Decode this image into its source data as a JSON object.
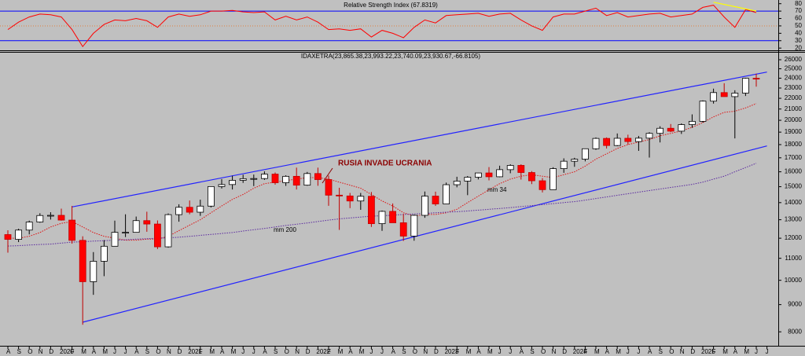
{
  "chart_data": [
    {
      "type": "line",
      "title": "Relative Strength Index (67.8319)",
      "color": "#ff0000",
      "ylim": [
        17,
        85
      ],
      "yticks": [
        80,
        70,
        60,
        50,
        40,
        30,
        20
      ],
      "bands": [
        30,
        70
      ],
      "band_color": "#0000ff",
      "midline": 50,
      "midline_color": "#e08040",
      "values": [
        45,
        55,
        62,
        66,
        65,
        62,
        45,
        22,
        40,
        52,
        58,
        57,
        60,
        57,
        48,
        62,
        66,
        63,
        65,
        70,
        70,
        71,
        69,
        68,
        69,
        58,
        63,
        58,
        62,
        55,
        45,
        46,
        44,
        46,
        35,
        44,
        40,
        34,
        48,
        58,
        54,
        64,
        65,
        66,
        67,
        63,
        66,
        67,
        58,
        50,
        44,
        62,
        66,
        66,
        70,
        74,
        64,
        68,
        62,
        64,
        66,
        67,
        62,
        64,
        66,
        75,
        78,
        62,
        48,
        72,
        68,
        null
      ],
      "trendlines": [
        {
          "color": "#ffff00",
          "x": [
            66,
            70
          ],
          "values": [
            82,
            70
          ]
        }
      ]
    },
    {
      "type": "candlestick",
      "title": "IDAXETRA(23,865.38,23,993.22,23,740.09,23,930.67,-66.8105)",
      "log_scale": true,
      "ylim": [
        7530,
        26900
      ],
      "yticks": [
        26000,
        25000,
        24000,
        23000,
        22000,
        21000,
        20000,
        19000,
        18000,
        17000,
        16000,
        15000,
        14000,
        13000,
        12000,
        11000,
        10000,
        9000,
        8000
      ],
      "categories": [
        "A",
        "S",
        "O",
        "N",
        "D",
        "2020",
        "F",
        "M",
        "A",
        "M",
        "J",
        "J",
        "A",
        "S",
        "O",
        "N",
        "D",
        "2021",
        "F",
        "M",
        "A",
        "M",
        "J",
        "J",
        "A",
        "S",
        "O",
        "N",
        "D",
        "2022",
        "F",
        "M",
        "A",
        "M",
        "J",
        "J",
        "A",
        "S",
        "O",
        "N",
        "D",
        "2023",
        "F",
        "M",
        "A",
        "M",
        "J",
        "J",
        "A",
        "S",
        "O",
        "N",
        "D",
        "2024",
        "F",
        "M",
        "A",
        "M",
        "J",
        "J",
        "A",
        "S",
        "O",
        "N",
        "D",
        "2025",
        "F",
        "M",
        "A",
        "M",
        "J",
        "J"
      ],
      "up_color": "#ffffff",
      "down_color": "#ff0000",
      "open": [
        12190,
        11940,
        12430,
        12870,
        13240,
        13250,
        12980,
        11890,
        9940,
        10860,
        11590,
        12310,
        12310,
        12950,
        12760,
        11560,
        13290,
        13720,
        13430,
        13790,
        15010,
        15140,
        15420,
        15530,
        15540,
        15840,
        15260,
        15690,
        15100,
        15880,
        15470,
        14460,
        14410,
        14100,
        14390,
        12780,
        13480,
        12830,
        12110,
        13250,
        14400,
        13920,
        15130,
        15370,
        15630,
        15920,
        15660,
        16150,
        16450,
        15950,
        15390,
        14810,
        16220,
        16750,
        16900,
        17680,
        18490,
        17930,
        18500,
        18240,
        18510,
        18900,
        19320,
        19080,
        19630,
        19910,
        21730,
        22550,
        22160,
        22500,
        23990,
        null
      ],
      "high": [
        12420,
        12500,
        12950,
        13370,
        13430,
        13640,
        13800,
        12100,
        11300,
        11900,
        12950,
        13310,
        13180,
        13460,
        12960,
        13360,
        13900,
        14130,
        14180,
        15010,
        15500,
        15730,
        15800,
        15810,
        16030,
        15950,
        15760,
        16290,
        15990,
        16290,
        15740,
        14930,
        14600,
        14600,
        14660,
        13530,
        13950,
        13330,
        13290,
        14690,
        14680,
        15270,
        15660,
        15710,
        15930,
        16330,
        16430,
        16530,
        16530,
        16050,
        15570,
        16320,
        16960,
        17000,
        17680,
        18570,
        18570,
        18890,
        18790,
        18690,
        18990,
        19490,
        19680,
        19730,
        20520,
        21800,
        22940,
        23480,
        22780,
        24040,
        24480,
        null
      ],
      "low": [
        11270,
        11800,
        12200,
        12830,
        13010,
        12950,
        11720,
        8250,
        9390,
        10180,
        11610,
        12060,
        12310,
        12340,
        11450,
        11520,
        12890,
        13310,
        13220,
        13710,
        14880,
        14820,
        15250,
        15040,
        15450,
        15130,
        15050,
        14820,
        15060,
        15060,
        13810,
        12440,
        13670,
        13570,
        12600,
        12390,
        12840,
        11860,
        11870,
        13110,
        13800,
        13960,
        14960,
        14460,
        15480,
        15420,
        15630,
        15900,
        15470,
        15170,
        14630,
        14850,
        15930,
        16350,
        16740,
        17600,
        17700,
        17880,
        18010,
        17520,
        17020,
        18170,
        19000,
        18850,
        19360,
        19800,
        21500,
        22150,
        18490,
        22220,
        23140,
        null
      ],
      "close": [
        11940,
        12430,
        12870,
        13240,
        13250,
        12980,
        11890,
        9940,
        10860,
        11590,
        12310,
        12310,
        12950,
        12760,
        11560,
        13290,
        13720,
        13430,
        13790,
        15010,
        15140,
        15420,
        15530,
        15540,
        15840,
        15260,
        15690,
        15100,
        15880,
        15470,
        14460,
        14410,
        14100,
        14390,
        12780,
        13480,
        12830,
        12110,
        13250,
        14400,
        13920,
        15130,
        15370,
        15630,
        15920,
        15660,
        16150,
        16450,
        15950,
        15390,
        14810,
        16220,
        16750,
        16900,
        17680,
        18490,
        17930,
        18500,
        18240,
        18510,
        18900,
        19320,
        19080,
        19630,
        19910,
        21730,
        22550,
        22160,
        22500,
        23990,
        23930,
        null
      ],
      "series": [
        {
          "name": "mm 34",
          "color": "#e01010",
          "values": [
            12000,
            12000,
            12100,
            12300,
            12600,
            12800,
            12900,
            12600,
            12300,
            12100,
            12000,
            11900,
            11900,
            11950,
            11950,
            12100,
            12400,
            12700,
            13000,
            13400,
            13800,
            14200,
            14500,
            14900,
            15200,
            15300,
            15400,
            15500,
            15600,
            15600,
            15500,
            15300,
            15100,
            14900,
            14500,
            14100,
            13800,
            13400,
            13200,
            13300,
            13300,
            13400,
            13600,
            14000,
            14400,
            14800,
            15200,
            15500,
            15700,
            15800,
            15700,
            15600,
            15800,
            16000,
            16400,
            16900,
            17300,
            17700,
            18000,
            18200,
            18400,
            18700,
            18900,
            19100,
            19400,
            19800,
            20300,
            20700,
            20800,
            21100,
            21500,
            null
          ]
        },
        {
          "name": "mm 200",
          "color": "#5a28a0",
          "values": [
            11600,
            11620,
            11650,
            11680,
            11700,
            11750,
            11800,
            11820,
            11850,
            11870,
            11900,
            11920,
            11950,
            11970,
            12000,
            12020,
            12050,
            12100,
            12150,
            12200,
            12250,
            12300,
            12380,
            12450,
            12520,
            12600,
            12680,
            12750,
            12820,
            12900,
            12980,
            13050,
            13100,
            13150,
            13200,
            13230,
            13260,
            13300,
            13330,
            13360,
            13400,
            13430,
            13460,
            13500,
            13550,
            13600,
            13650,
            13700,
            13760,
            13820,
            13880,
            13940,
            14000,
            14060,
            14150,
            14250,
            14350,
            14450,
            14550,
            14650,
            14750,
            14850,
            14950,
            15050,
            15150,
            15300,
            15500,
            15700,
            16000,
            16300,
            16600,
            null
          ]
        }
      ],
      "trendlines": [
        {
          "color": "#2222ff",
          "x": [
            6,
            71
          ],
          "values": [
            13740,
            24650
          ]
        },
        {
          "color": "#2222ff",
          "x": [
            7,
            71
          ],
          "values": [
            8340,
            17900
          ]
        }
      ],
      "annotations": [
        "RUSIA INVADE UCRANIA"
      ]
    }
  ]
}
